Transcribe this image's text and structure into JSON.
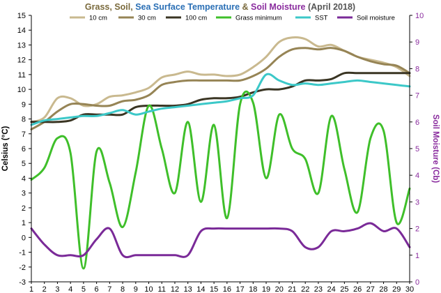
{
  "chart_data": {
    "type": "line",
    "title": {
      "parts": [
        {
          "text": "Grass",
          "color": "#7a6a3c"
        },
        {
          "text": ", ",
          "color": "#7a6a3c"
        },
        {
          "text": "Soil",
          "color": "#7a6a3c"
        },
        {
          "text": ", ",
          "color": "#7a6a3c"
        },
        {
          "text": "Sea Surface Temperature",
          "color": "#2a6fb5"
        },
        {
          "text": " & ",
          "color": "#7a6a3c"
        },
        {
          "text": "Soil Moisture",
          "color": "#8a2c9e"
        },
        {
          "text": " (April 2018)",
          "color": "#555555"
        }
      ]
    },
    "ylabel_left": "Celsius (°C)",
    "ylabel_right": "Soil Moisture (Cb)",
    "ylabel_left_color": "#000000",
    "ylabel_right_color": "#8a2c9e",
    "x": [
      1,
      2,
      3,
      4,
      5,
      6,
      7,
      8,
      9,
      10,
      11,
      12,
      13,
      14,
      15,
      16,
      17,
      18,
      19,
      20,
      21,
      22,
      23,
      24,
      25,
      26,
      27,
      28,
      29,
      30
    ],
    "xlim": [
      1,
      30
    ],
    "ylim_left": [
      -3,
      15
    ],
    "yticks_left": [
      -3,
      -2,
      -1,
      0,
      1,
      2,
      3,
      4,
      5,
      6,
      7,
      8,
      9,
      10,
      11,
      12,
      13,
      14,
      15
    ],
    "ylim_right": [
      0,
      10
    ],
    "yticks_right": [
      0,
      1,
      2,
      3,
      4,
      5,
      6,
      7,
      8,
      9,
      10
    ],
    "grid": false,
    "legend_position": "top",
    "series": [
      {
        "name": "10 cm",
        "axis": "left",
        "color": "#c9b98f",
        "values": [
          7.8,
          8.1,
          9.4,
          9.4,
          8.9,
          9.0,
          9.5,
          9.6,
          9.8,
          10.1,
          10.8,
          11.0,
          11.2,
          11.0,
          11.0,
          10.9,
          11.0,
          11.5,
          12.2,
          13.2,
          13.5,
          13.4,
          12.9,
          13.0,
          12.6,
          12.2,
          12.0,
          11.8,
          11.5,
          10.9
        ]
      },
      {
        "name": "30 cm",
        "axis": "left",
        "color": "#968455",
        "values": [
          7.3,
          7.8,
          8.5,
          9.0,
          9.0,
          8.9,
          8.9,
          9.2,
          9.3,
          9.6,
          10.3,
          10.5,
          10.6,
          10.6,
          10.6,
          10.6,
          10.6,
          10.9,
          11.4,
          12.2,
          12.7,
          12.8,
          12.7,
          12.8,
          12.6,
          12.2,
          11.9,
          11.7,
          11.6,
          11.1
        ]
      },
      {
        "name": "100 cm",
        "axis": "left",
        "color": "#3a3523",
        "values": [
          7.8,
          7.8,
          7.8,
          7.9,
          8.3,
          8.3,
          8.3,
          8.3,
          8.8,
          8.9,
          8.9,
          8.9,
          9.0,
          9.3,
          9.4,
          9.4,
          9.5,
          9.8,
          10.0,
          10.0,
          10.2,
          10.6,
          10.6,
          10.7,
          11.1,
          11.1,
          11.1,
          11.1,
          11.1,
          11.1
        ]
      },
      {
        "name": "Grass minimum",
        "axis": "left",
        "color": "#3fbf2a",
        "values": [
          3.9,
          4.7,
          6.7,
          5.7,
          -2.1,
          5.8,
          3.7,
          0.7,
          4.4,
          8.9,
          6.0,
          3.0,
          7.8,
          2.4,
          7.6,
          1.3,
          9.0,
          9.1,
          4.0,
          8.3,
          6.0,
          5.3,
          3.0,
          8.2,
          4.6,
          1.7,
          6.7,
          7.2,
          1.0,
          3.3
        ]
      },
      {
        "name": "SST",
        "axis": "left",
        "color": "#3cc8c8",
        "values": [
          7.6,
          7.9,
          8.0,
          8.1,
          8.2,
          8.2,
          8.4,
          8.6,
          8.3,
          8.5,
          8.7,
          8.8,
          8.9,
          9.0,
          9.1,
          9.2,
          9.4,
          9.6,
          11.0,
          10.6,
          10.3,
          10.4,
          10.3,
          10.4,
          10.5,
          10.6,
          10.5,
          10.4,
          10.3,
          10.2
        ]
      },
      {
        "name": "Soil moisture",
        "axis": "right",
        "color": "#7a2a98",
        "values": [
          2.0,
          1.4,
          1.0,
          1.0,
          1.0,
          1.6,
          2.0,
          1.0,
          1.0,
          1.0,
          1.0,
          1.0,
          1.0,
          1.9,
          2.0,
          2.0,
          2.0,
          2.0,
          2.0,
          2.0,
          1.9,
          1.3,
          1.3,
          1.9,
          1.9,
          2.0,
          2.2,
          1.9,
          2.0,
          1.3
        ]
      }
    ]
  }
}
